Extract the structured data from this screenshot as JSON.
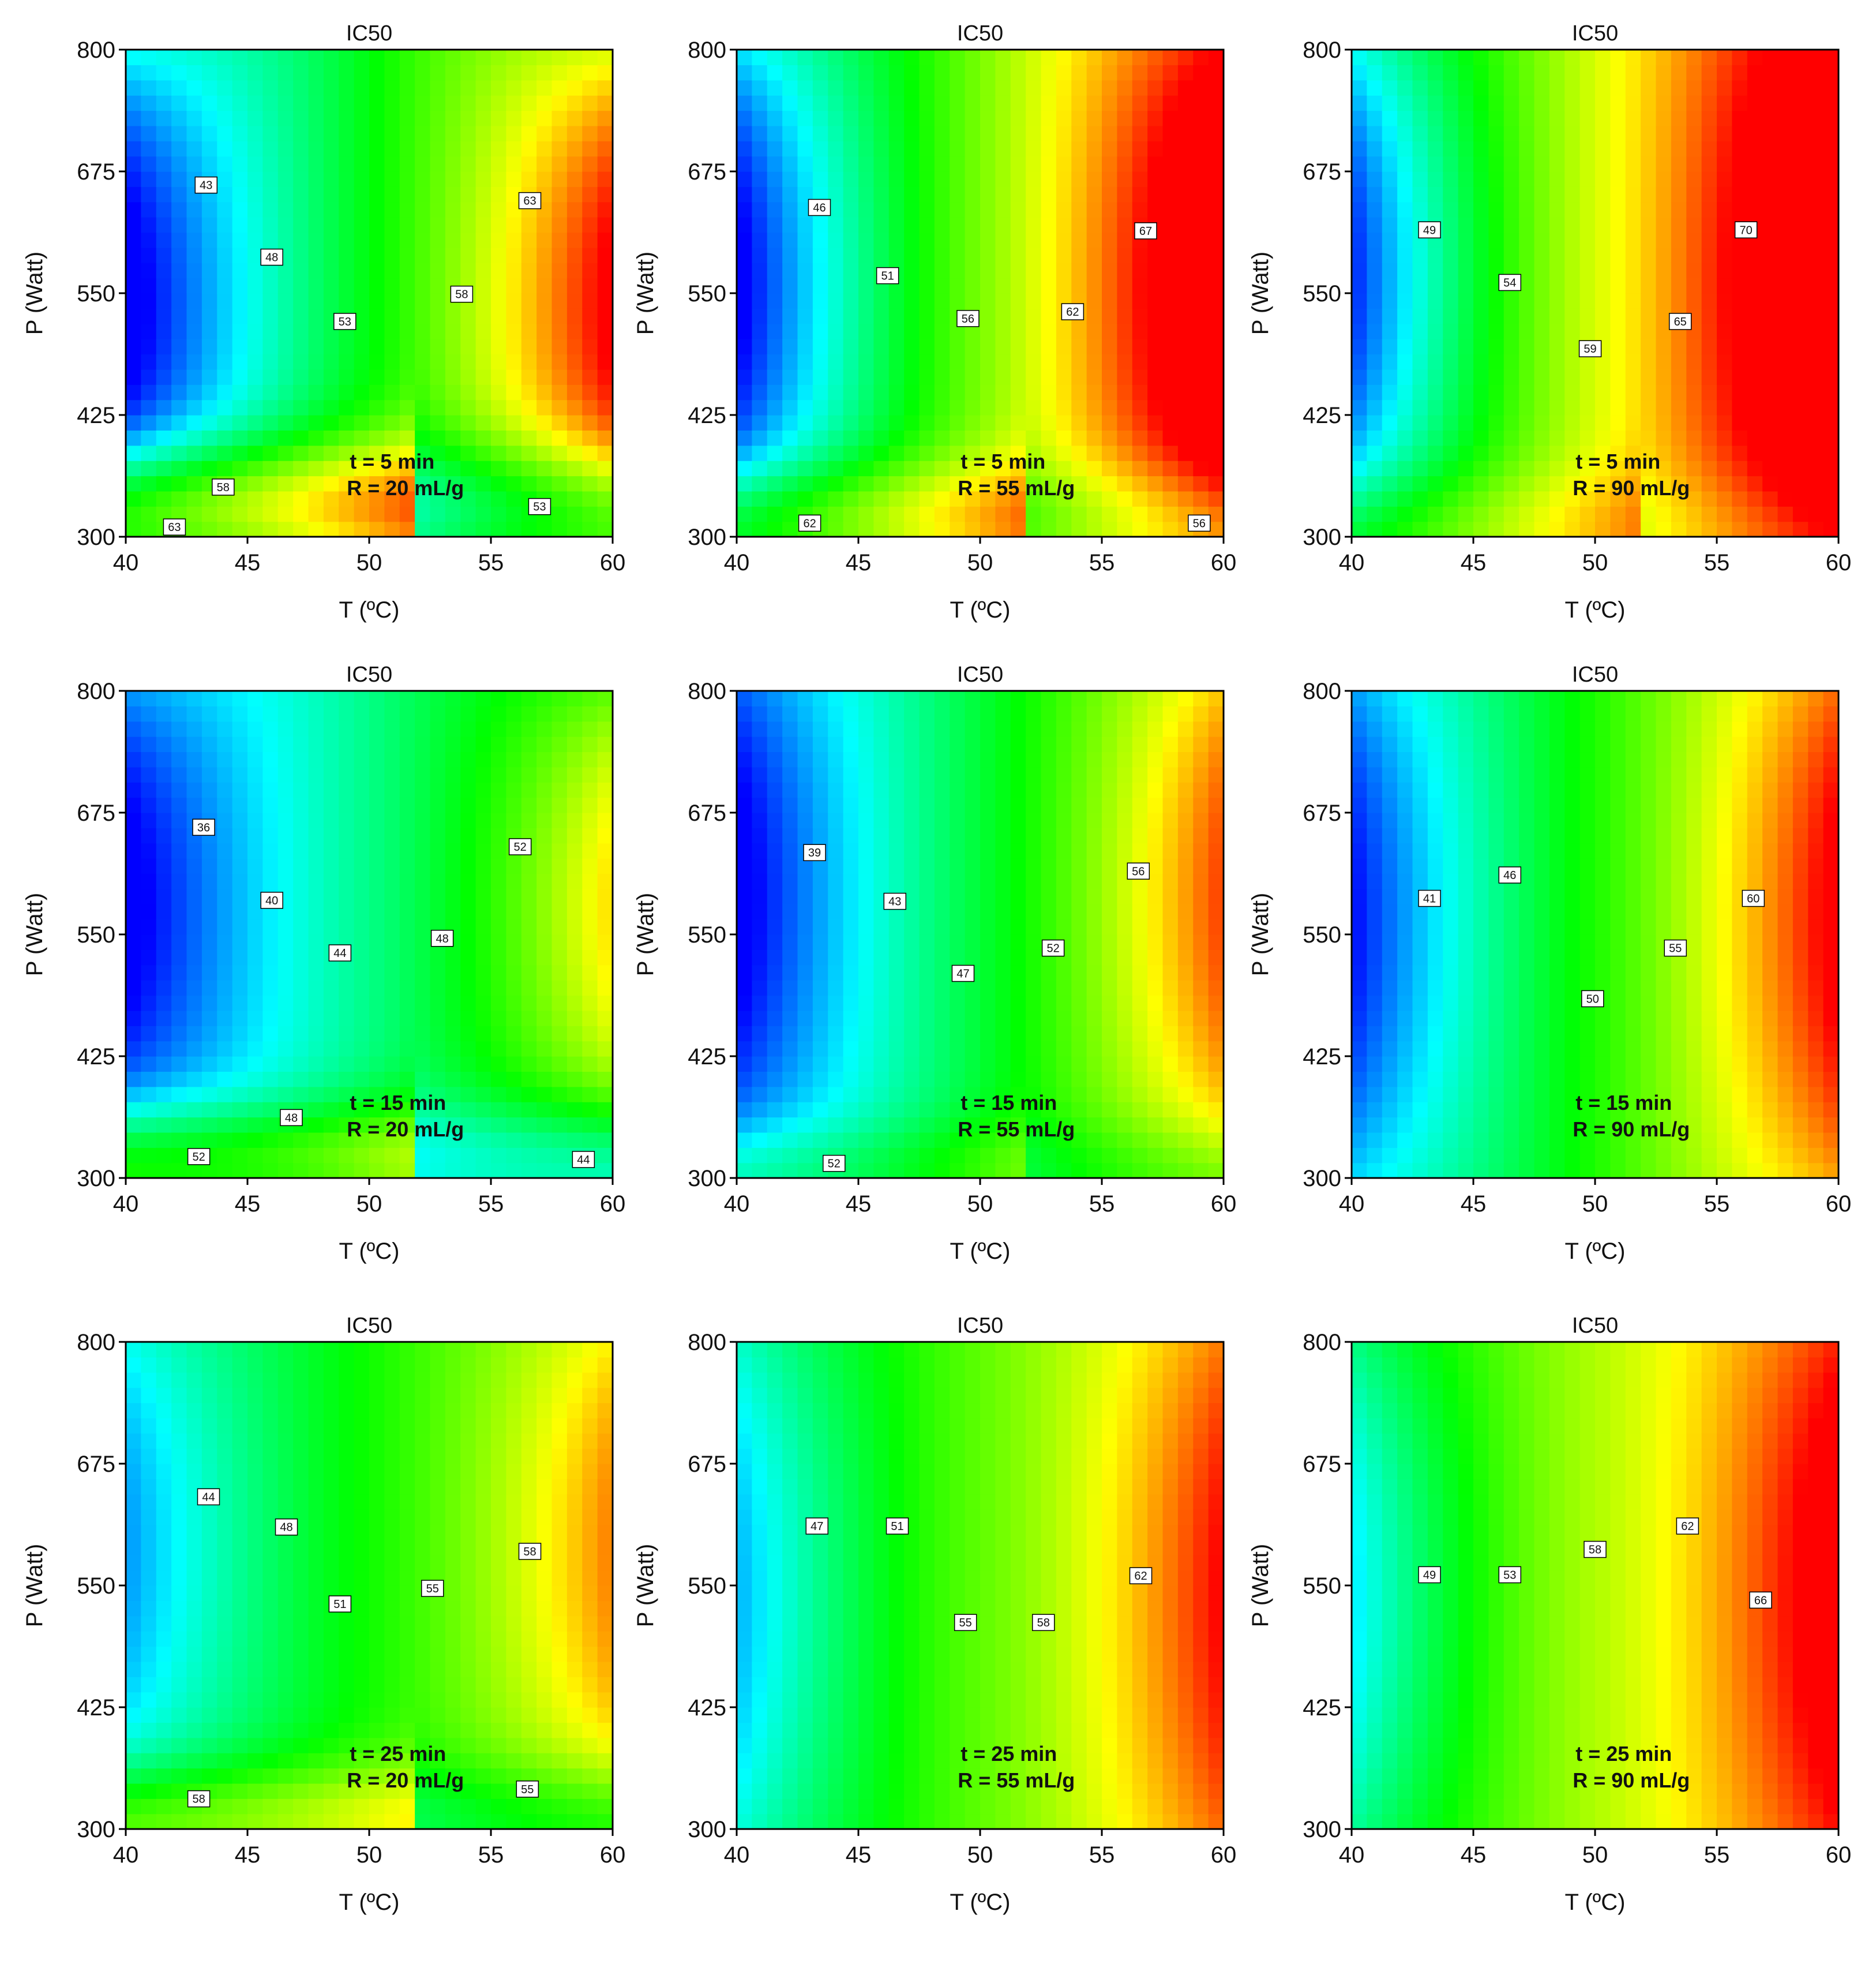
{
  "chart_data": [
    {
      "type": "heatmap",
      "title": "IC50",
      "xlabel": "T (ºC)",
      "ylabel": "P (Watt)",
      "xlim": [
        40,
        60
      ],
      "ylim": [
        300,
        800
      ],
      "xticks": [
        "40",
        "45",
        "50",
        "55",
        "60"
      ],
      "yticks": [
        "300",
        "425",
        "550",
        "675",
        "800"
      ],
      "annotations": [
        "t = 5 min",
        "R = 20 mL/g"
      ],
      "field": {
        "c": 50.5,
        "a": 14,
        "b": 7,
        "d": 0.6,
        "y0": 540,
        "ys": 150,
        "g": 14,
        "yc": 330,
        "w": 70
      },
      "contours": [
        {
          "label": "43",
          "x": 43.3,
          "y": 661
        },
        {
          "label": "48",
          "x": 46.0,
          "y": 587
        },
        {
          "label": "53",
          "x": 49.0,
          "y": 521
        },
        {
          "label": "58",
          "x": 53.8,
          "y": 549
        },
        {
          "label": "63",
          "x": 56.6,
          "y": 645
        },
        {
          "label": "58",
          "x": 44.0,
          "y": 351
        },
        {
          "label": "63",
          "x": 42.0,
          "y": 310
        },
        {
          "label": "53",
          "x": 57.0,
          "y": 331
        }
      ]
    },
    {
      "type": "heatmap",
      "title": "IC50",
      "xlabel": "T (ºC)",
      "ylabel": "P (Watt)",
      "xlim": [
        40,
        60
      ],
      "ylim": [
        300,
        800
      ],
      "xticks": [
        "40",
        "45",
        "50",
        "55",
        "60"
      ],
      "yticks": [
        "300",
        "425",
        "550",
        "675",
        "800"
      ],
      "annotations": [
        "t = 5 min",
        "R = 55 mL/g"
      ],
      "field": {
        "c": 55.5,
        "a": 15,
        "b": 10,
        "d": 0.5,
        "y0": 560,
        "ys": 170,
        "g": 8,
        "yc": 320,
        "w": 60
      },
      "contours": [
        {
          "label": "46",
          "x": 43.4,
          "y": 638
        },
        {
          "label": "51",
          "x": 46.2,
          "y": 568
        },
        {
          "label": "56",
          "x": 49.5,
          "y": 524
        },
        {
          "label": "62",
          "x": 53.8,
          "y": 531
        },
        {
          "label": "67",
          "x": 56.8,
          "y": 614
        },
        {
          "label": "62",
          "x": 43.0,
          "y": 314
        },
        {
          "label": "56",
          "x": 59.0,
          "y": 314
        }
      ]
    },
    {
      "type": "heatmap",
      "title": "IC50",
      "xlabel": "T (ºC)",
      "ylabel": "P (Watt)",
      "xlim": [
        40,
        60
      ],
      "ylim": [
        300,
        800
      ],
      "xticks": [
        "40",
        "45",
        "50",
        "55",
        "60"
      ],
      "yticks": [
        "300",
        "425",
        "550",
        "675",
        "800"
      ],
      "annotations": [
        "t = 5 min",
        "R = 90 mL/g"
      ],
      "field": {
        "c": 59,
        "a": 14,
        "b": 12,
        "d": 0.4,
        "y0": 570,
        "ys": 170,
        "g": 4,
        "yc": 310,
        "w": 60
      },
      "contours": [
        {
          "label": "49",
          "x": 43.2,
          "y": 615
        },
        {
          "label": "54",
          "x": 46.5,
          "y": 561
        },
        {
          "label": "59",
          "x": 49.8,
          "y": 493
        },
        {
          "label": "65",
          "x": 53.5,
          "y": 521
        },
        {
          "label": "70",
          "x": 56.2,
          "y": 615
        }
      ]
    },
    {
      "type": "heatmap",
      "title": "IC50",
      "xlabel": "T (ºC)",
      "ylabel": "P (Watt)",
      "xlim": [
        40,
        60
      ],
      "ylim": [
        300,
        800
      ],
      "xticks": [
        "40",
        "45",
        "50",
        "55",
        "60"
      ],
      "yticks": [
        "300",
        "425",
        "550",
        "675",
        "800"
      ],
      "annotations": [
        "t = 15 min",
        "R = 20 mL/g"
      ],
      "field": {
        "c": 46,
        "a": 10,
        "b": 6,
        "d": 0.6,
        "y0": 580,
        "ys": 150,
        "g": 10,
        "yc": 320,
        "w": 60
      },
      "contours": [
        {
          "label": "36",
          "x": 43.2,
          "y": 660
        },
        {
          "label": "40",
          "x": 46.0,
          "y": 585
        },
        {
          "label": "44",
          "x": 48.8,
          "y": 531
        },
        {
          "label": "48",
          "x": 53.0,
          "y": 546
        },
        {
          "label": "52",
          "x": 56.2,
          "y": 640
        },
        {
          "label": "48",
          "x": 46.8,
          "y": 362
        },
        {
          "label": "52",
          "x": 43.0,
          "y": 322
        },
        {
          "label": "44",
          "x": 58.8,
          "y": 319
        }
      ]
    },
    {
      "type": "heatmap",
      "title": "IC50",
      "xlabel": "T (ºC)",
      "ylabel": "P (Watt)",
      "xlim": [
        40,
        60
      ],
      "ylim": [
        300,
        800
      ],
      "xticks": [
        "40",
        "45",
        "50",
        "55",
        "60"
      ],
      "yticks": [
        "300",
        "425",
        "550",
        "675",
        "800"
      ],
      "annotations": [
        "t = 15 min",
        "R = 55 mL/g"
      ],
      "field": {
        "c": 49,
        "a": 12,
        "b": 7,
        "d": 0.5,
        "y0": 590,
        "ys": 170,
        "g": 4,
        "yc": 310,
        "w": 50
      },
      "contours": [
        {
          "label": "39",
          "x": 43.2,
          "y": 634
        },
        {
          "label": "43",
          "x": 46.5,
          "y": 584
        },
        {
          "label": "47",
          "x": 49.3,
          "y": 510
        },
        {
          "label": "52",
          "x": 53.0,
          "y": 536
        },
        {
          "label": "56",
          "x": 56.5,
          "y": 615
        },
        {
          "label": "52",
          "x": 44.0,
          "y": 315
        }
      ]
    },
    {
      "type": "heatmap",
      "title": "IC50",
      "xlabel": "T (ºC)",
      "ylabel": "P (Watt)",
      "xlim": [
        40,
        60
      ],
      "ylim": [
        300,
        800
      ],
      "xticks": [
        "40",
        "45",
        "50",
        "55",
        "60"
      ],
      "yticks": [
        "300",
        "425",
        "550",
        "675",
        "800"
      ],
      "annotations": [
        "t = 15 min",
        "R = 90 mL/g"
      ],
      "field": {
        "c": 52,
        "a": 12,
        "b": 8,
        "d": 0.5,
        "y0": 570,
        "ys": 190,
        "g": 0,
        "yc": 310,
        "w": 50
      },
      "contours": [
        {
          "label": "41",
          "x": 43.2,
          "y": 587
        },
        {
          "label": "46",
          "x": 46.5,
          "y": 611
        },
        {
          "label": "50",
          "x": 49.9,
          "y": 484
        },
        {
          "label": "55",
          "x": 53.3,
          "y": 536
        },
        {
          "label": "60",
          "x": 56.5,
          "y": 587
        }
      ]
    },
    {
      "type": "heatmap",
      "title": "IC50",
      "xlabel": "T (ºC)",
      "ylabel": "P (Watt)",
      "xlim": [
        40,
        60
      ],
      "ylim": [
        300,
        800
      ],
      "xticks": [
        "40",
        "45",
        "50",
        "55",
        "60"
      ],
      "yticks": [
        "300",
        "425",
        "550",
        "675",
        "800"
      ],
      "annotations": [
        "t = 25 min",
        "R = 20 mL/g"
      ],
      "field": {
        "c": 51.5,
        "a": 8,
        "b": 6,
        "d": 0.5,
        "y0": 590,
        "ys": 170,
        "g": 8,
        "yc": 310,
        "w": 60
      },
      "contours": [
        {
          "label": "44",
          "x": 43.4,
          "y": 641
        },
        {
          "label": "48",
          "x": 46.6,
          "y": 610
        },
        {
          "label": "51",
          "x": 48.8,
          "y": 531
        },
        {
          "label": "55",
          "x": 52.6,
          "y": 547
        },
        {
          "label": "58",
          "x": 56.6,
          "y": 585
        },
        {
          "label": "58",
          "x": 43.0,
          "y": 331
        },
        {
          "label": "55",
          "x": 56.5,
          "y": 341
        }
      ]
    },
    {
      "type": "heatmap",
      "title": "IC50",
      "xlabel": "T (ºC)",
      "ylabel": "P (Watt)",
      "xlim": [
        40,
        60
      ],
      "ylim": [
        300,
        800
      ],
      "xticks": [
        "40",
        "45",
        "50",
        "55",
        "60"
      ],
      "yticks": [
        "300",
        "425",
        "550",
        "675",
        "800"
      ],
      "annotations": [
        "t = 25 min",
        "R = 55 mL/g"
      ],
      "field": {
        "c": 54.5,
        "a": 8,
        "b": 8,
        "d": 0.3,
        "y0": 540,
        "ys": 180,
        "g": 0,
        "yc": 310,
        "w": 50
      },
      "contours": [
        {
          "label": "47",
          "x": 43.3,
          "y": 611
        },
        {
          "label": "51",
          "x": 46.6,
          "y": 611
        },
        {
          "label": "55",
          "x": 49.4,
          "y": 512
        },
        {
          "label": "58",
          "x": 52.6,
          "y": 512
        },
        {
          "label": "62",
          "x": 56.6,
          "y": 560
        }
      ]
    },
    {
      "type": "heatmap",
      "title": "IC50",
      "xlabel": "T (ºC)",
      "ylabel": "P (Watt)",
      "xlim": [
        40,
        60
      ],
      "ylim": [
        300,
        800
      ],
      "xticks": [
        "40",
        "45",
        "50",
        "55",
        "60"
      ],
      "yticks": [
        "300",
        "425",
        "550",
        "675",
        "800"
      ],
      "annotations": [
        "t = 25 min",
        "R = 90 mL/g"
      ],
      "field": {
        "c": 57.5,
        "a": 8,
        "b": 9,
        "d": 0.3,
        "y0": 540,
        "ys": 180,
        "g": 0,
        "yc": 310,
        "w": 50
      },
      "contours": [
        {
          "label": "49",
          "x": 43.2,
          "y": 561
        },
        {
          "label": "53",
          "x": 46.5,
          "y": 561
        },
        {
          "label": "58",
          "x": 50.0,
          "y": 587
        },
        {
          "label": "62",
          "x": 53.8,
          "y": 611
        },
        {
          "label": "66",
          "x": 56.8,
          "y": 535
        }
      ]
    }
  ]
}
